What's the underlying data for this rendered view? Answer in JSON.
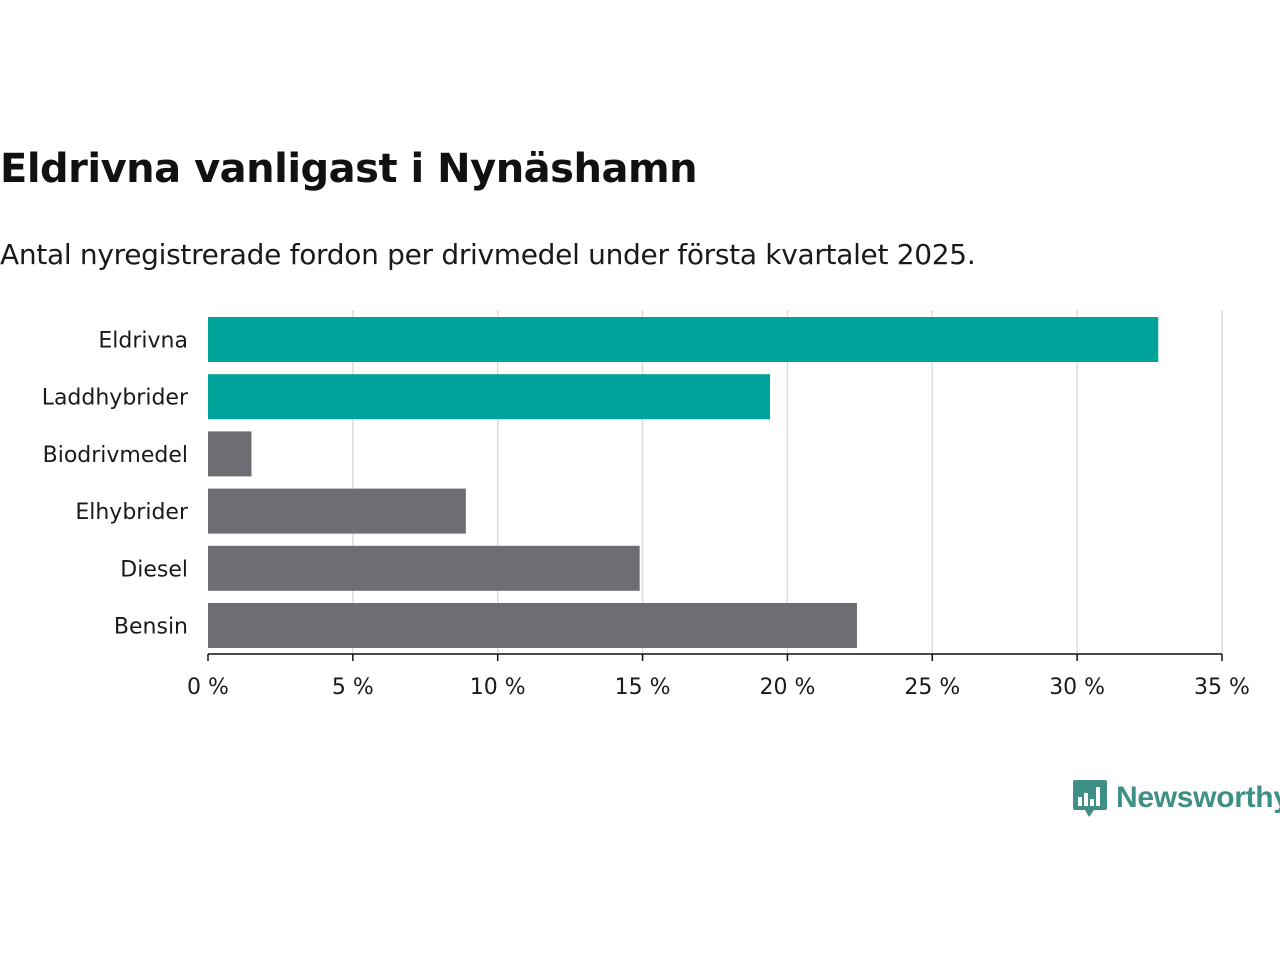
{
  "header": {
    "title": "Eldrivna vanligast i Nynäshamn",
    "subtitle": "Antal nyregistrerade fordon per drivmedel under första kvartalet 2025."
  },
  "brand": {
    "name": "Newsworthy",
    "color": "#3e8f86",
    "icon": "bar-chart-speech-bubble-icon"
  },
  "colors": {
    "highlight": "#00a39a",
    "default": "#6e6d73",
    "grid": "#dcdcdc",
    "axis": "#111111"
  },
  "chart_data": {
    "type": "bar",
    "orientation": "horizontal",
    "categories": [
      "Eldrivna",
      "Laddhybrider",
      "Biodrivmedel",
      "Elhybrider",
      "Diesel",
      "Bensin"
    ],
    "values": [
      32.8,
      19.4,
      1.5,
      8.9,
      14.9,
      22.4
    ],
    "highlighted": [
      true,
      true,
      false,
      false,
      false,
      false
    ],
    "xlim": [
      0,
      35
    ],
    "xticks": [
      0,
      5,
      10,
      15,
      20,
      25,
      30,
      35
    ],
    "xtick_labels": [
      "0 %",
      "5 %",
      "10 %",
      "15 %",
      "20 %",
      "25 %",
      "30 %",
      "35 %"
    ],
    "xlabel": "",
    "ylabel": "",
    "grid": true,
    "legend": "none"
  }
}
